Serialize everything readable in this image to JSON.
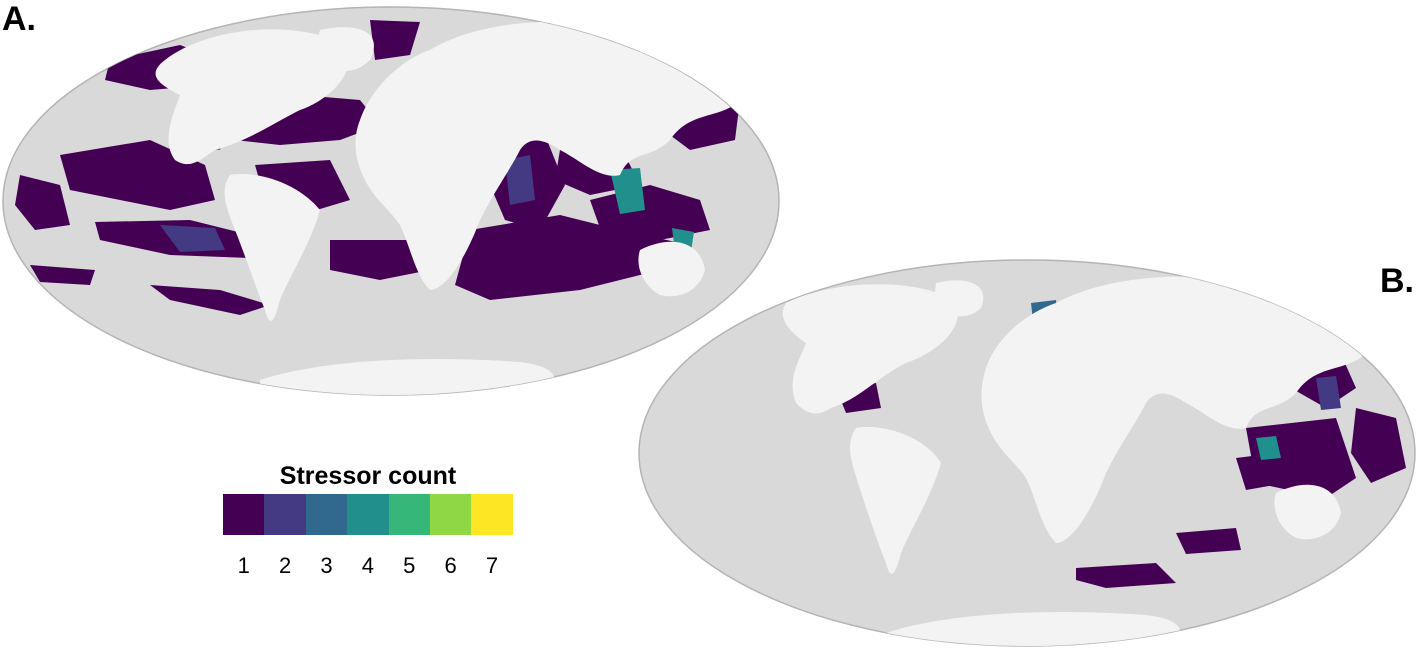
{
  "panels": [
    {
      "id": "a",
      "label": "A."
    },
    {
      "id": "b",
      "label": "B."
    }
  ],
  "legend": {
    "title": "Stressor count",
    "levels": [
      {
        "value": "1",
        "color": "#440154"
      },
      {
        "value": "2",
        "color": "#443A83"
      },
      {
        "value": "3",
        "color": "#31688E"
      },
      {
        "value": "4",
        "color": "#21908C"
      },
      {
        "value": "5",
        "color": "#35B779"
      },
      {
        "value": "6",
        "color": "#8FD744"
      },
      {
        "value": "7",
        "color": "#FDE725"
      }
    ]
  },
  "colors": {
    "ocean": "#d9d9d9",
    "land": "#f3f3f3",
    "outline": "#b4b4b4"
  }
}
